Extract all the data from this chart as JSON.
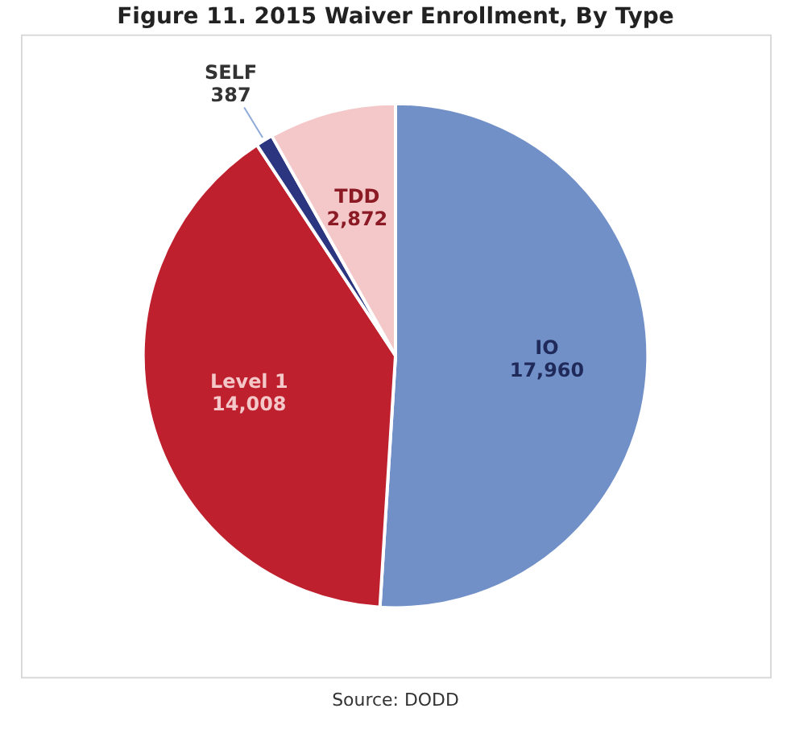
{
  "chart_data": {
    "type": "pie",
    "title": "Figure 11. 2015 Waiver Enrollment, By Type",
    "categories": [
      "IO",
      "Level 1",
      "SELF",
      "TDD"
    ],
    "values": [
      17960,
      14008,
      387,
      2872
    ],
    "value_labels": [
      "17,960",
      "14,008",
      "387",
      "2,872"
    ],
    "colors": [
      "#7290c8",
      "#be202e",
      "#2b3580",
      "#f4c7c9"
    ],
    "annotations": [
      "Source: DODD"
    ]
  }
}
